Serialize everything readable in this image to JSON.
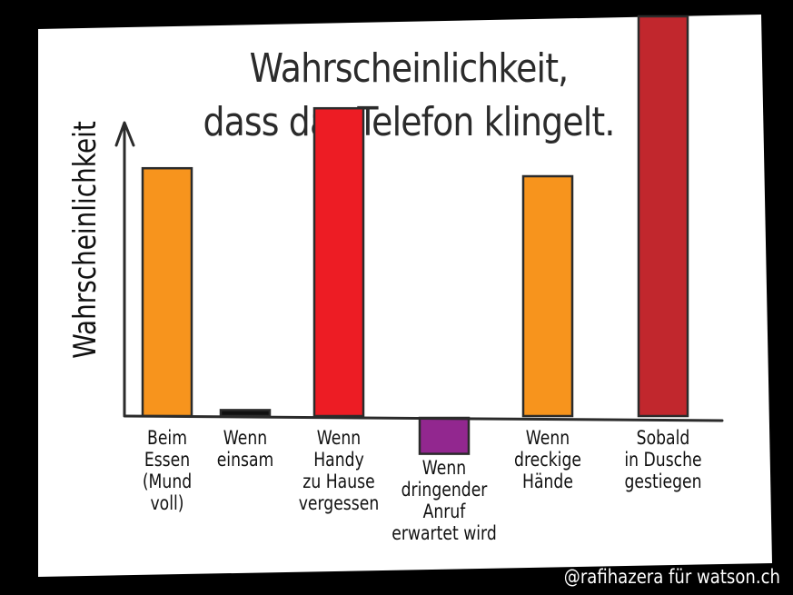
{
  "chart_data": {
    "type": "bar",
    "title_lines": [
      "Wahrscheinlichkeit,",
      "dass das Telefon klingelt."
    ],
    "ylabel": "Wahrscheinlichkeit",
    "xlabel": "",
    "categories": [
      [
        "Beim",
        "Essen",
        "(Mund",
        "voll)"
      ],
      [
        "Wenn",
        "einsam"
      ],
      [
        "Wenn",
        "Handy",
        "zu Hause",
        "vergessen"
      ],
      [
        "Wenn",
        "dringender",
        "Anruf",
        "erwartet wird"
      ],
      [
        "Wenn",
        "dreckige",
        "Hände"
      ],
      [
        "Sobald",
        "in Dusche",
        "gestiegen"
      ]
    ],
    "values": [
      0.62,
      0.015,
      0.77,
      -0.09,
      0.6,
      1.0
    ],
    "colors": [
      "#F7941D",
      "#111111",
      "#ED1C24",
      "#92278F",
      "#F7941D",
      "#C1272D"
    ],
    "ylim": [
      -0.15,
      1.05
    ],
    "grid": false,
    "legend": "none"
  },
  "credit": "@rafihazera für watson.ch",
  "colors": {
    "background": "#000000",
    "paper": "#ffffff",
    "outline": "#2b2b2b"
  }
}
